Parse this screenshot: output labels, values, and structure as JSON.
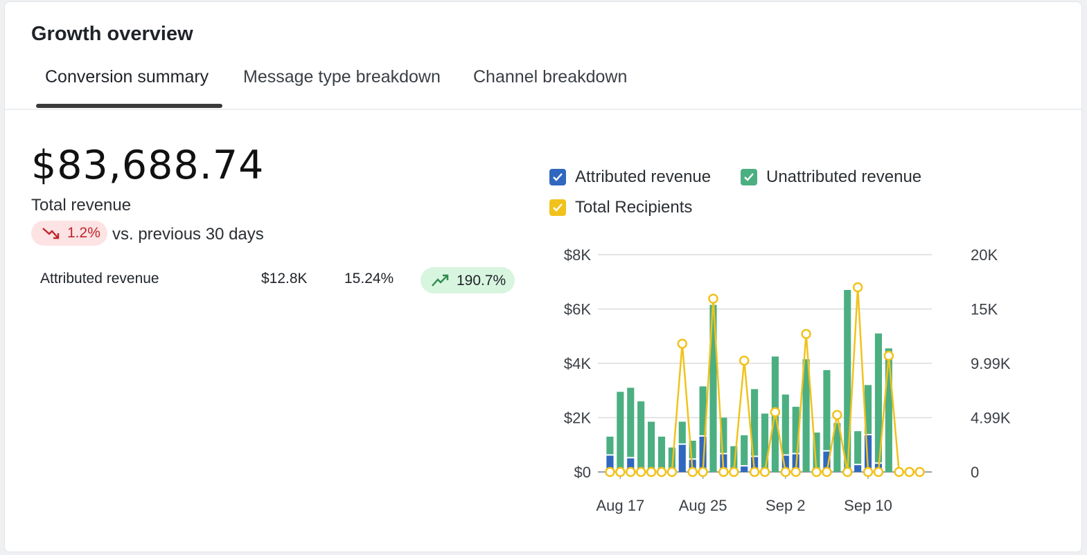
{
  "header": {
    "title": "Growth overview"
  },
  "tabs": [
    {
      "label": "Conversion summary",
      "active": true
    },
    {
      "label": "Message type breakdown",
      "active": false
    },
    {
      "label": "Channel breakdown",
      "active": false
    }
  ],
  "summary": {
    "total_value": "$83,688.74",
    "total_label": "Total revenue",
    "change_value": "1.2%",
    "change_direction": "down",
    "change_caption": "vs. previous 30 days"
  },
  "breakdown_row": {
    "label": "Attributed revenue",
    "amount": "$12.8K",
    "share": "15.24%",
    "change": "190.7%",
    "change_direction": "up"
  },
  "colors": {
    "attributed": "#2f68be",
    "unattributed": "#4caf82",
    "recipients": "#f1c21b",
    "negative": "#c0252b",
    "positive": "#2f8a4f"
  },
  "icons": {
    "down": "trend-down-icon",
    "up": "trend-up-icon",
    "checkbox": "checkbox-checked-icon"
  },
  "chart_data": {
    "type": "bar",
    "legend": [
      {
        "name": "Attributed revenue",
        "checked": true
      },
      {
        "name": "Unattributed revenue",
        "checked": true
      },
      {
        "name": "Total Recipients",
        "checked": true
      }
    ],
    "x": [
      "Aug 16",
      "Aug 17",
      "Aug 18",
      "Aug 19",
      "Aug 20",
      "Aug 21",
      "Aug 22",
      "Aug 23",
      "Aug 24",
      "Aug 25",
      "Aug 26",
      "Aug 27",
      "Aug 28",
      "Aug 29",
      "Aug 30",
      "Aug 31",
      "Sep 1",
      "Sep 2",
      "Sep 3",
      "Sep 4",
      "Sep 5",
      "Sep 6",
      "Sep 7",
      "Sep 8",
      "Sep 9",
      "Sep 10",
      "Sep 11",
      "Sep 12",
      "Sep 13",
      "Sep 14",
      "Sep 15"
    ],
    "x_ticks": [
      "Aug 17",
      "Aug 25",
      "Sep 2",
      "Sep 10"
    ],
    "y_left_ticks": [
      "$0",
      "$2K",
      "$4K",
      "$6K",
      "$8K"
    ],
    "y_right_ticks": [
      "0",
      "4.99K",
      "9.99K",
      "15K",
      "20K"
    ],
    "y_left_lim": [
      0,
      8000
    ],
    "y_right_lim": [
      0,
      20000
    ],
    "grid": true,
    "legend_position": "top",
    "series": [
      {
        "name": "Attributed revenue",
        "axis": "left",
        "stacked": true,
        "values": [
          600,
          0,
          500,
          0,
          0,
          0,
          0,
          1000,
          450,
          1300,
          0,
          650,
          0,
          200,
          550,
          0,
          0,
          600,
          650,
          0,
          0,
          750,
          0,
          0,
          250,
          1350,
          300,
          0,
          0,
          0,
          0
        ]
      },
      {
        "name": "Unattributed revenue",
        "axis": "left",
        "stacked": true,
        "values": [
          700,
          2950,
          2600,
          2600,
          1850,
          1300,
          900,
          850,
          700,
          1850,
          6150,
          1350,
          950,
          1150,
          2500,
          2150,
          4250,
          2250,
          1750,
          4150,
          1450,
          3000,
          1800,
          6700,
          1250,
          1850,
          4800,
          4550,
          0,
          0,
          0
        ]
      },
      {
        "name": "Total Recipients",
        "axis": "right",
        "type": "line",
        "values": [
          0,
          0,
          0,
          0,
          0,
          0,
          0,
          11800,
          0,
          0,
          15950,
          0,
          0,
          10250,
          0,
          0,
          5500,
          0,
          0,
          12700,
          0,
          0,
          5250,
          0,
          17000,
          0,
          0,
          10700,
          0,
          0,
          0
        ]
      }
    ]
  }
}
